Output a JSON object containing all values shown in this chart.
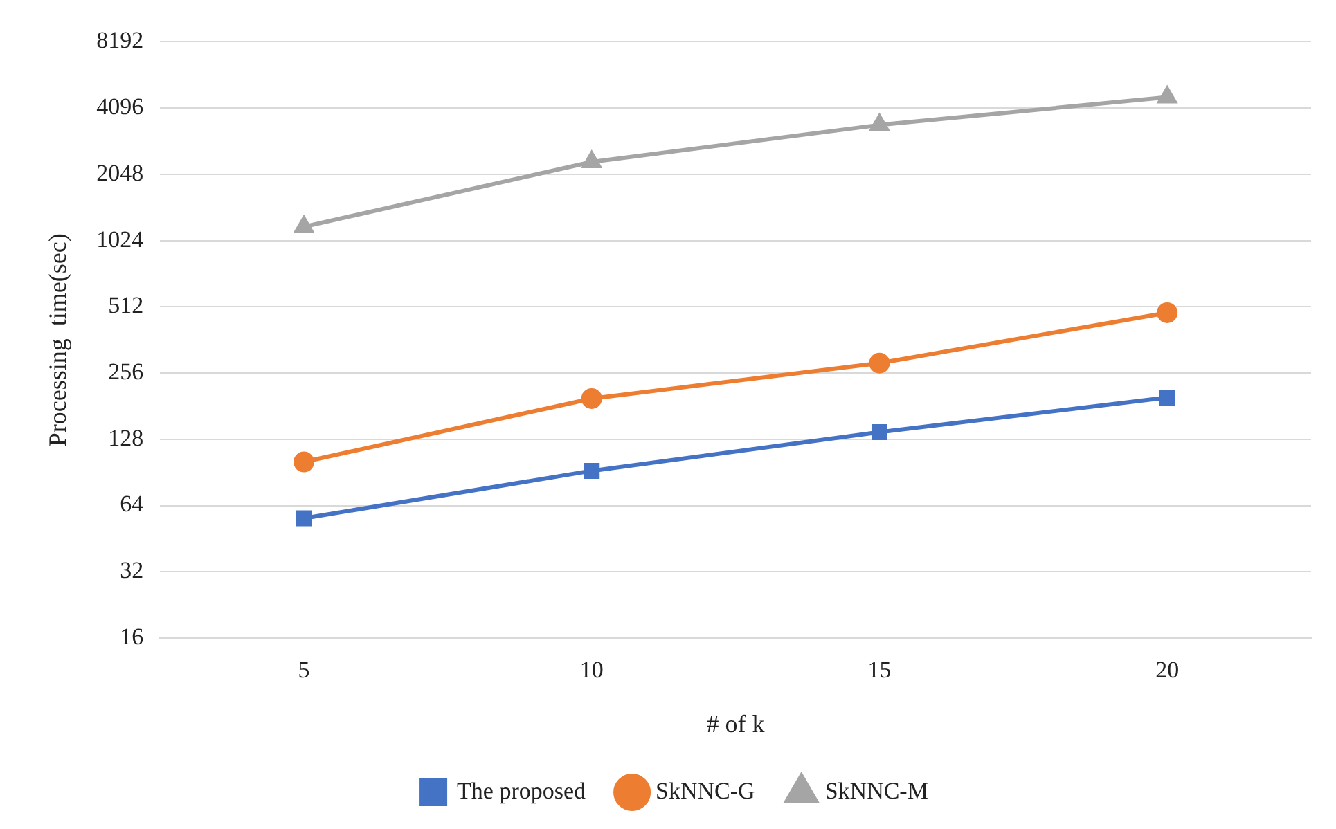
{
  "chart_data": {
    "type": "line",
    "xlabel": "# of k",
    "ylabel": "Processing  time(sec)",
    "categories": [
      "5",
      "10",
      "15",
      "20"
    ],
    "series": [
      {
        "name": "The proposed",
        "color": "#4472c4",
        "marker": "square",
        "values": [
          56,
          92,
          138,
          198
        ]
      },
      {
        "name": "SkNNC-G",
        "color": "#ed7d31",
        "marker": "circle",
        "values": [
          101,
          196,
          284,
          481
        ]
      },
      {
        "name": "SkNNC-M",
        "color": "#a5a5a5",
        "marker": "triangle",
        "values": [
          1183,
          2330,
          3431,
          4589
        ]
      }
    ],
    "log": "y",
    "ylim": [
      16,
      8192
    ],
    "yticks": [
      16,
      32,
      64,
      128,
      256,
      512,
      1024,
      2048,
      4096,
      8192
    ],
    "grid": "y",
    "legend": "bottom"
  }
}
